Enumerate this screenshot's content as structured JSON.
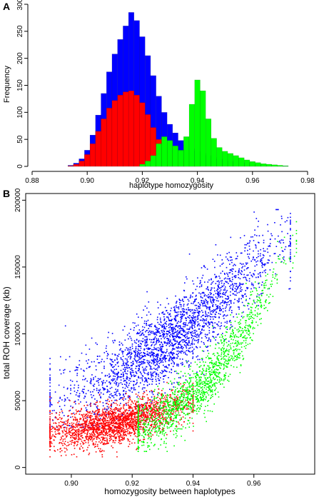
{
  "chart_data": [
    {
      "panel_label": "A",
      "type": "bar",
      "xlabel": "haplotype homozygosity",
      "ylabel": "Frequency",
      "xlim": [
        0.88,
        0.98
      ],
      "ylim": [
        0,
        300
      ],
      "xticks": [
        "0.88",
        "0.90",
        "0.92",
        "0.94",
        "0.96",
        "0.98"
      ],
      "yticks": [
        "0",
        "50",
        "100",
        "150",
        "200",
        "250",
        "300"
      ],
      "grid": false,
      "legend": "none",
      "series": [
        {
          "color": "#0000ff",
          "x": [
            0.894,
            0.896,
            0.898,
            0.9,
            0.902,
            0.904,
            0.906,
            0.908,
            0.91,
            0.912,
            0.914,
            0.916,
            0.918,
            0.92,
            0.922,
            0.924,
            0.926,
            0.928,
            0.93,
            0.932,
            0.934,
            0.936,
            0.938,
            0.94,
            0.942,
            0.944,
            0.946,
            0.948,
            0.95,
            0.952,
            0.954,
            0.956,
            0.958,
            0.96,
            0.962,
            0.964,
            0.966,
            0.968,
            0.97,
            0.972
          ],
          "values": [
            2,
            6,
            14,
            30,
            58,
            95,
            135,
            175,
            208,
            235,
            260,
            285,
            270,
            240,
            205,
            168,
            130,
            100,
            78,
            62,
            48,
            40,
            33,
            28,
            24,
            20,
            17,
            14,
            12,
            10,
            8,
            7,
            6,
            5,
            4,
            3,
            3,
            2,
            1,
            1
          ]
        },
        {
          "color": "#ff0000",
          "x": [
            0.894,
            0.896,
            0.898,
            0.9,
            0.902,
            0.904,
            0.906,
            0.908,
            0.91,
            0.912,
            0.914,
            0.916,
            0.918,
            0.92,
            0.922,
            0.924,
            0.926,
            0.928,
            0.93,
            0.932,
            0.934,
            0.936,
            0.938,
            0.94
          ],
          "values": [
            1,
            4,
            10,
            22,
            42,
            65,
            88,
            108,
            122,
            132,
            138,
            140,
            132,
            118,
            96,
            72,
            50,
            34,
            24,
            18,
            14,
            10,
            6,
            3
          ]
        },
        {
          "color": "#00ff00",
          "x": [
            0.92,
            0.922,
            0.924,
            0.926,
            0.928,
            0.93,
            0.932,
            0.934,
            0.936,
            0.938,
            0.94,
            0.942,
            0.944,
            0.946,
            0.948,
            0.95,
            0.952,
            0.954,
            0.956,
            0.958,
            0.96,
            0.962,
            0.964,
            0.966,
            0.968,
            0.97,
            0.972
          ],
          "values": [
            4,
            10,
            20,
            42,
            55,
            48,
            38,
            30,
            55,
            115,
            160,
            140,
            88,
            52,
            35,
            28,
            24,
            20,
            16,
            12,
            9,
            7,
            5,
            4,
            3,
            2,
            1
          ]
        }
      ]
    },
    {
      "panel_label": "B",
      "type": "scatter",
      "xlabel": "homozygosity between haplotypes",
      "ylabel": "total ROH coverage (kb)",
      "xlim": [
        0.885,
        0.98
      ],
      "ylim": [
        -5000,
        205000
      ],
      "xticks": [
        "0.90",
        "0.92",
        "0.94",
        "0.96"
      ],
      "yticks": [
        "0",
        "50000",
        "100000",
        "150000",
        "200000"
      ],
      "grid": false,
      "legend": "none",
      "series": [
        {
          "color": "#0000ff",
          "x_range": [
            0.893,
            0.972
          ],
          "y_range": [
            30000,
            193000
          ],
          "trend": {
            "x": [
              0.895,
              0.91,
              0.92,
              0.93,
              0.94,
              0.95,
              0.96,
              0.97
            ],
            "y": [
              50000,
              62000,
              75000,
              90000,
              108000,
              128000,
              150000,
              172000
            ]
          },
          "n_points": 2600
        },
        {
          "color": "#ff0000",
          "x_range": [
            0.893,
            0.94
          ],
          "y_range": [
            8000,
            78000
          ],
          "trend": {
            "x": [
              0.895,
              0.91,
              0.92,
              0.93,
              0.94
            ],
            "y": [
              26000,
              30000,
              36000,
              42000,
              50000
            ]
          },
          "n_points": 2200
        },
        {
          "color": "#00ff00",
          "x_range": [
            0.922,
            0.974
          ],
          "y_range": [
            12000,
            188000
          ],
          "trend": {
            "x": [
              0.925,
              0.935,
              0.945,
              0.955,
              0.965,
              0.972
            ],
            "y": [
              30000,
              45000,
              65000,
              95000,
              135000,
              170000
            ]
          },
          "n_points": 1500
        }
      ]
    }
  ]
}
